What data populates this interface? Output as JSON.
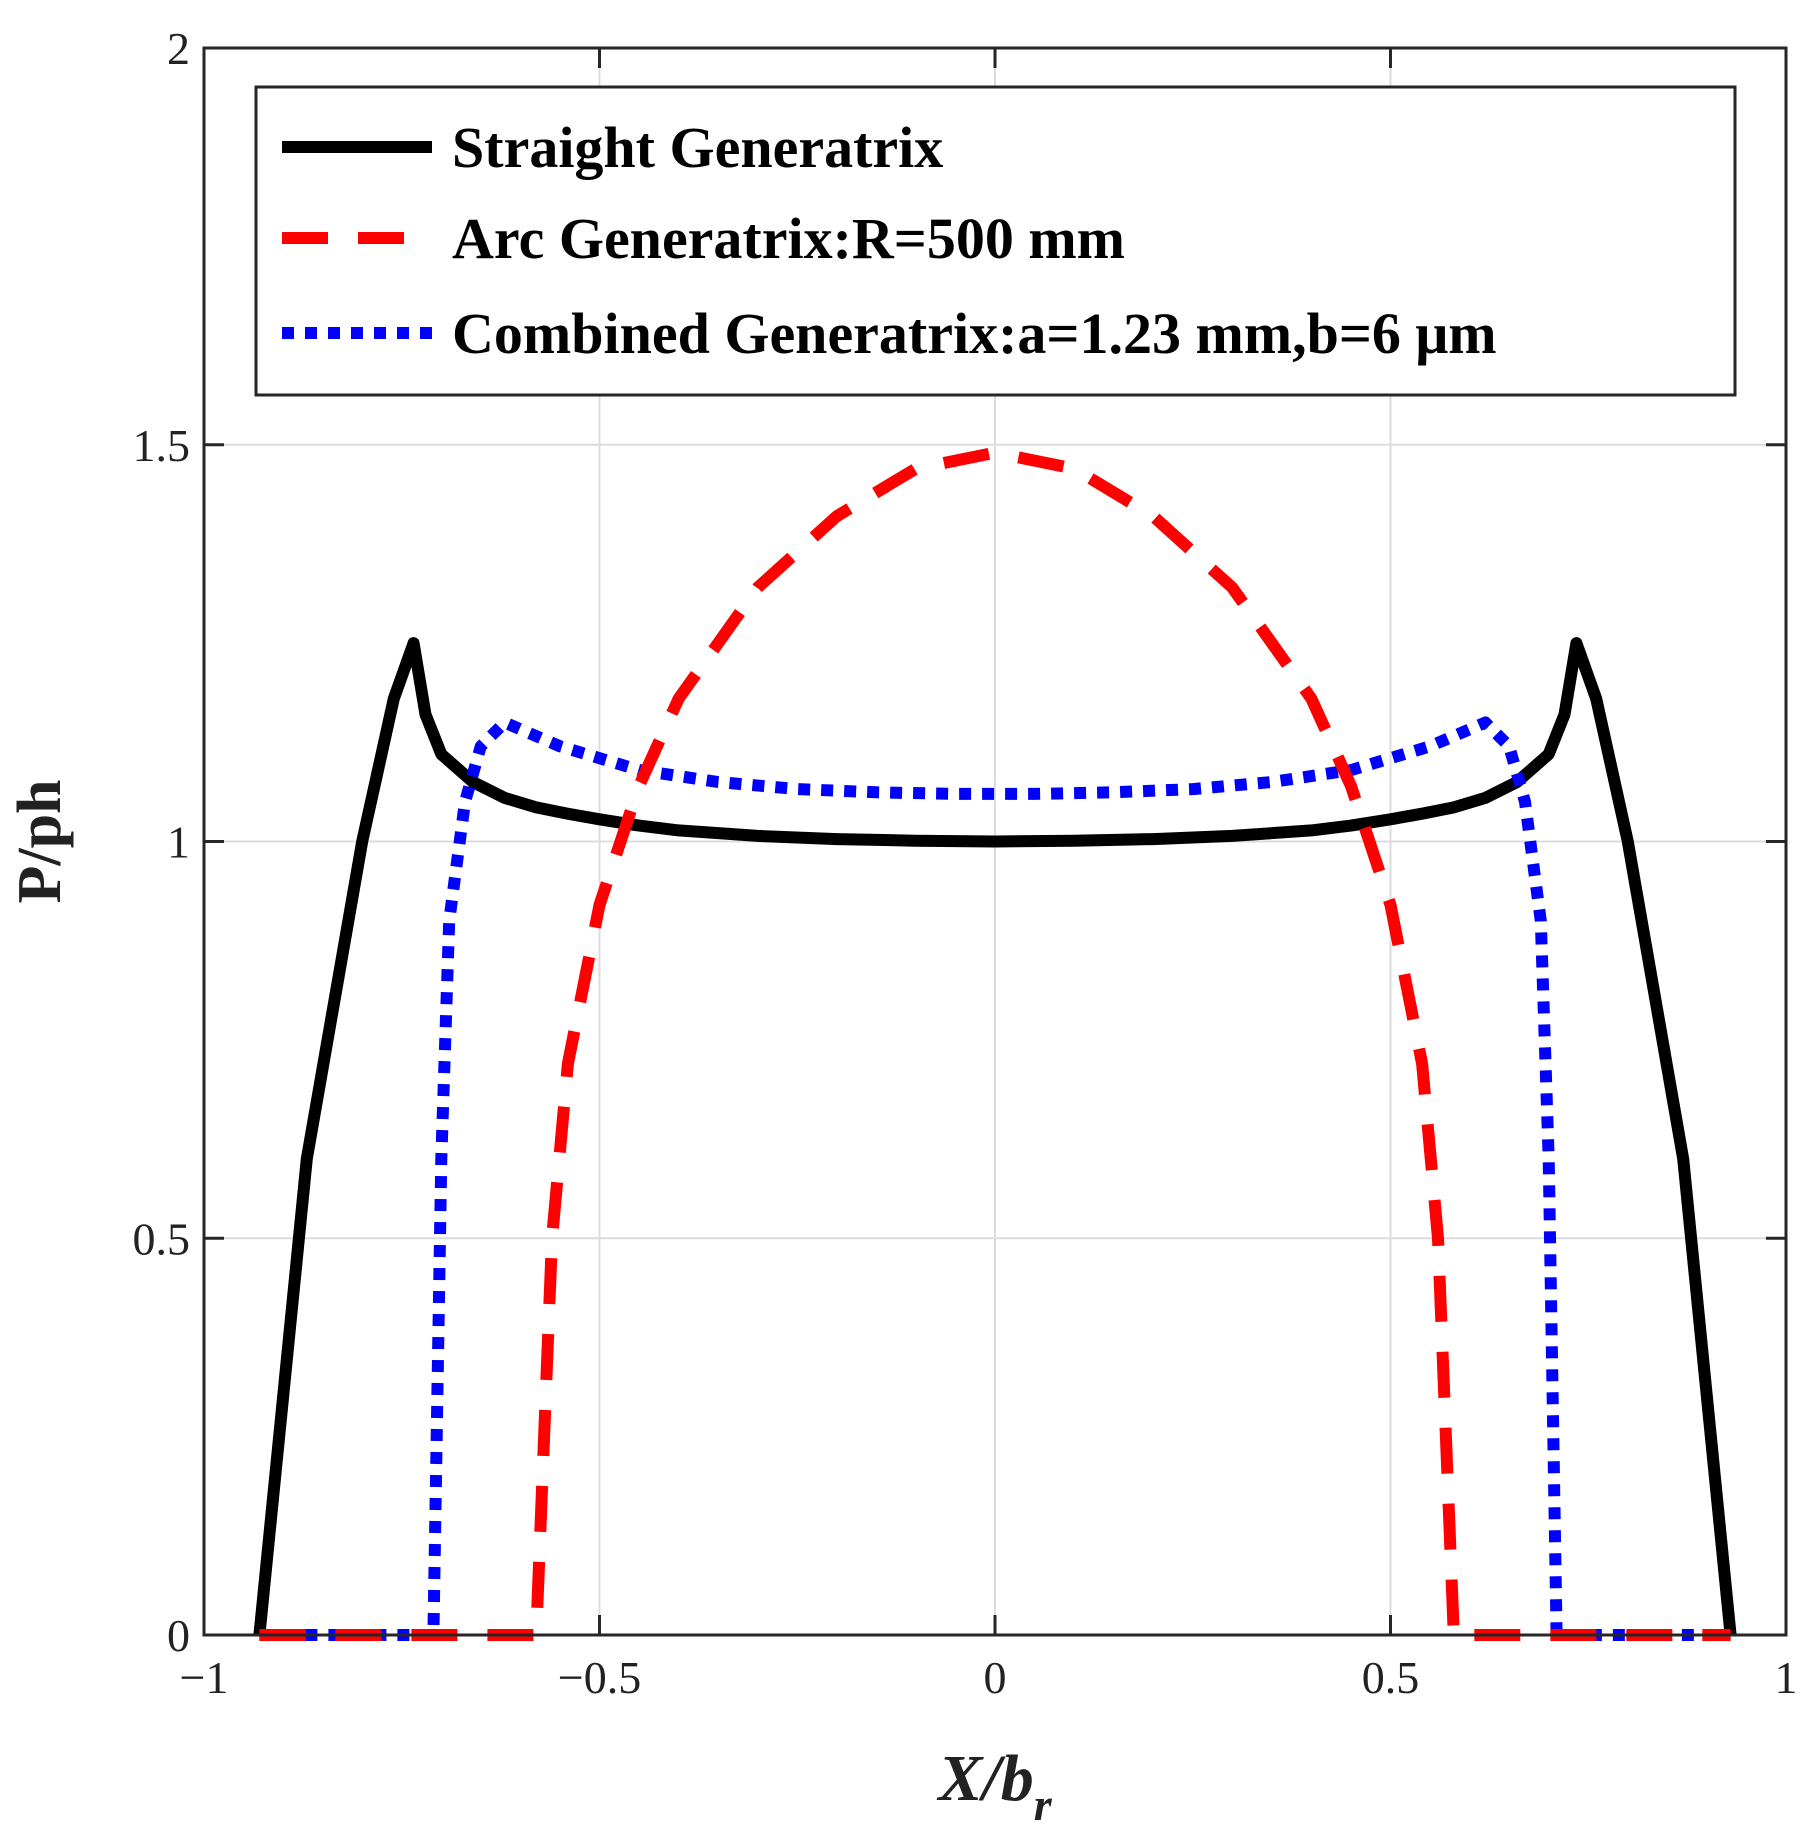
{
  "chart_data": {
    "type": "line",
    "title": "",
    "xlabel": "X/b",
    "xlabel_subscript": "r",
    "ylabel": "P/ph",
    "xlim": [
      -1,
      1
    ],
    "ylim": [
      0,
      2
    ],
    "xticks": [
      -1,
      -0.5,
      0,
      0.5,
      1
    ],
    "xtick_labels": [
      "−1",
      "−0.5",
      "0",
      "0.5",
      "1"
    ],
    "yticks": [
      0,
      0.5,
      1,
      1.5,
      2
    ],
    "ytick_labels": [
      "0",
      "0.5",
      "1",
      "1.5",
      "2"
    ],
    "grid": true,
    "legend_position": "top",
    "series": [
      {
        "name": "Straight Generatrix",
        "color": "#000000",
        "style": "solid",
        "x": [
          -0.93,
          -0.87,
          -0.8,
          -0.76,
          -0.735,
          -0.72,
          -0.7,
          -0.66,
          -0.62,
          -0.58,
          -0.54,
          -0.5,
          -0.45,
          -0.4,
          -0.3,
          -0.2,
          -0.1,
          0,
          0.1,
          0.2,
          0.3,
          0.4,
          0.45,
          0.5,
          0.54,
          0.58,
          0.62,
          0.66,
          0.7,
          0.72,
          0.735,
          0.76,
          0.8,
          0.87,
          0.93
        ],
        "y": [
          0,
          0.6,
          1.0,
          1.18,
          1.25,
          1.16,
          1.11,
          1.075,
          1.055,
          1.043,
          1.035,
          1.028,
          1.02,
          1.014,
          1.007,
          1.003,
          1.001,
          1.0,
          1.001,
          1.003,
          1.007,
          1.014,
          1.02,
          1.028,
          1.035,
          1.043,
          1.055,
          1.075,
          1.11,
          1.16,
          1.25,
          1.18,
          1.0,
          0.6,
          0
        ]
      },
      {
        "name": "Arc Generatrix:R=500 mm",
        "color": "#ff0000",
        "style": "dashed",
        "x": [
          -0.93,
          -0.58,
          -0.57,
          -0.56,
          -0.54,
          -0.5,
          -0.45,
          -0.4,
          -0.3,
          -0.2,
          -0.1,
          0,
          0.1,
          0.2,
          0.3,
          0.4,
          0.45,
          0.5,
          0.54,
          0.56,
          0.57,
          0.58,
          0.93
        ],
        "y": [
          0,
          0,
          0.25,
          0.5,
          0.72,
          0.92,
          1.07,
          1.18,
          1.32,
          1.41,
          1.47,
          1.49,
          1.47,
          1.41,
          1.32,
          1.18,
          1.07,
          0.92,
          0.72,
          0.5,
          0.25,
          0,
          0
        ]
      },
      {
        "name": "Combined Generatrix:a=1.23 mm,b=6 μm",
        "color": "#0000ff",
        "style": "dotted",
        "x": [
          -0.93,
          -0.71,
          -0.7,
          -0.69,
          -0.67,
          -0.65,
          -0.62,
          -0.55,
          -0.45,
          -0.35,
          -0.25,
          -0.15,
          -0.05,
          0,
          0.05,
          0.15,
          0.25,
          0.35,
          0.45,
          0.55,
          0.62,
          0.65,
          0.67,
          0.69,
          0.7,
          0.71,
          0.93
        ],
        "y": [
          0,
          0,
          0.6,
          0.9,
          1.05,
          1.12,
          1.15,
          1.12,
          1.09,
          1.075,
          1.066,
          1.062,
          1.06,
          1.06,
          1.06,
          1.062,
          1.066,
          1.075,
          1.09,
          1.12,
          1.15,
          1.12,
          1.05,
          0.9,
          0.6,
          0,
          0
        ]
      }
    ]
  }
}
